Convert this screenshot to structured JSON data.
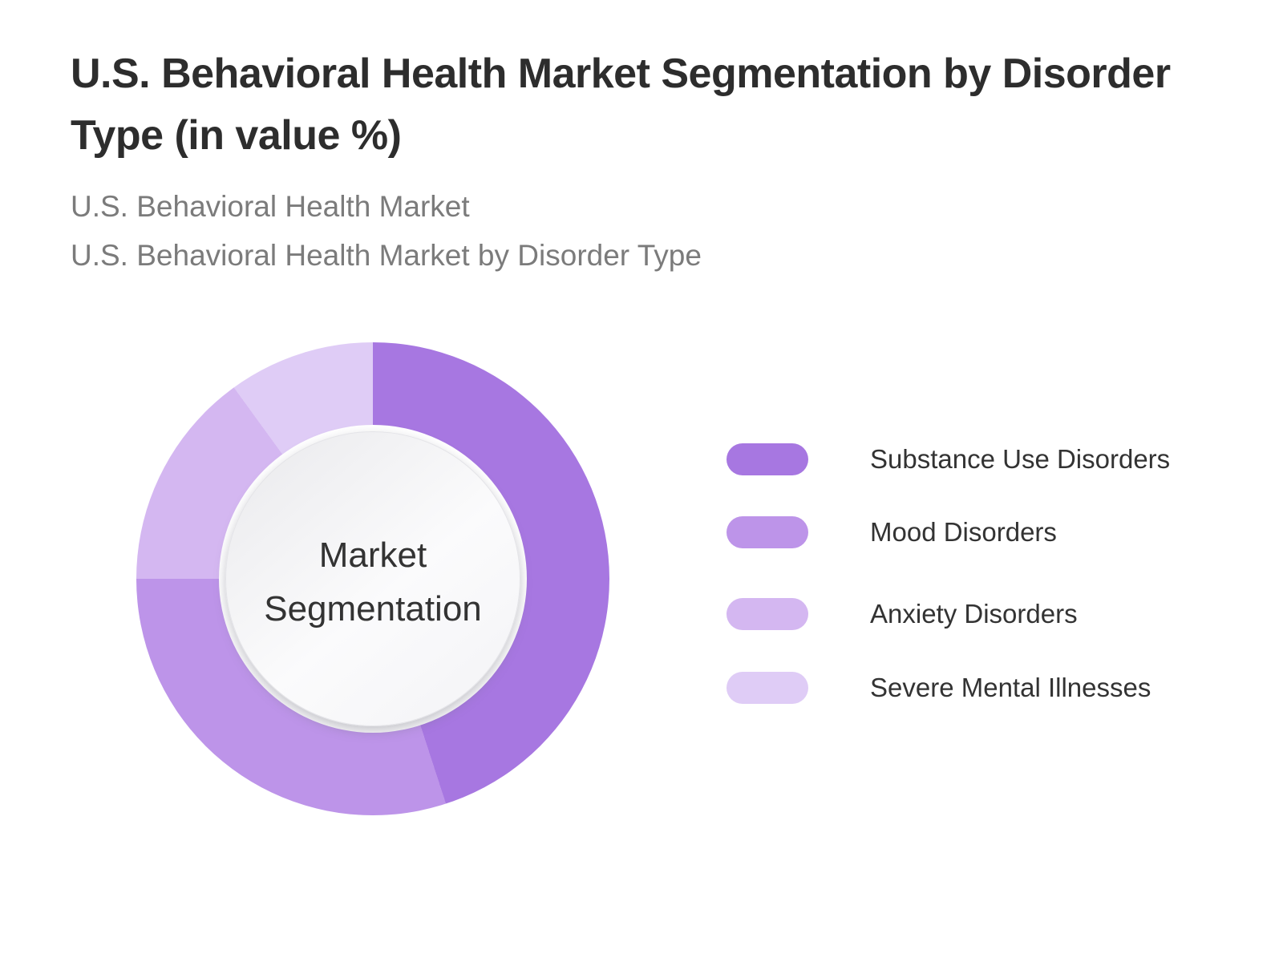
{
  "header": {
    "title": "U.S. Behavioral Health Market Segmentation by Disorder Type (in value %)",
    "subtitle1": "U.S. Behavioral Health Market",
    "subtitle2": "U.S. Behavioral Health Market by Disorder Type"
  },
  "donut": {
    "center_line1": "Market",
    "center_line2": "Segmentation"
  },
  "chart_data": {
    "type": "pie",
    "subtype": "donut",
    "title": "U.S. Behavioral Health Market Segmentation by Disorder Type (in value %)",
    "center_label": "Market Segmentation",
    "labels": [
      "Substance Use Disorders",
      "Mood Disorders",
      "Anxiety Disorders",
      "Severe Mental Illnesses"
    ],
    "values": [
      45,
      30,
      15,
      10
    ],
    "unit": "value %",
    "colors": [
      "#a777e1",
      "#bd94e9",
      "#d4b7f1",
      "#dfccf6"
    ],
    "start_angle_deg": 0,
    "direction": "clockwise",
    "legend_position": "right",
    "data_labels_shown": false
  },
  "palette": {
    "title_color": "#2d2d2d",
    "subtitle_color": "#7b7b7b",
    "label_color": "#333333",
    "background": "#ffffff"
  }
}
